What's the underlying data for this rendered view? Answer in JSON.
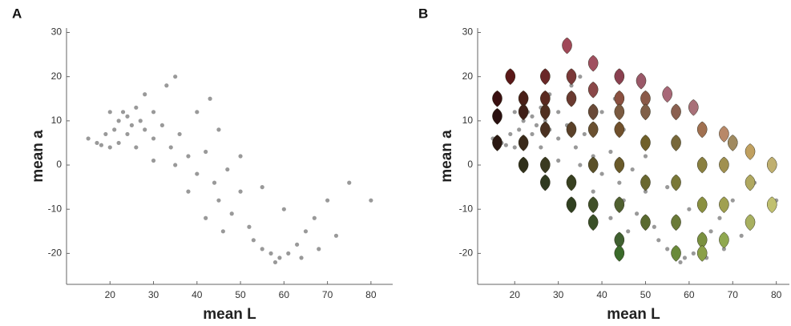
{
  "chart_data": [
    {
      "type": "scatter",
      "panel": "A",
      "xlabel": "mean L",
      "ylabel": "mean a",
      "xlim": [
        10,
        85
      ],
      "ylim": [
        -27,
        31
      ],
      "xticks": [
        20,
        30,
        40,
        50,
        60,
        70,
        80
      ],
      "yticks": [
        -20,
        -10,
        0,
        10,
        20,
        30
      ],
      "color": "#000000",
      "x": [
        15,
        17,
        18,
        20,
        19,
        21,
        22,
        23,
        24,
        25,
        26,
        27,
        28,
        24,
        22,
        30,
        32,
        30,
        34,
        36,
        38,
        35,
        40,
        42,
        44,
        45,
        47,
        48,
        50,
        52,
        53,
        55,
        57,
        59,
        61,
        63,
        65,
        67,
        60,
        55,
        50,
        45,
        40,
        33,
        28,
        70,
        75,
        72,
        58,
        64,
        38,
        42,
        30,
        26,
        46,
        80,
        35,
        43,
        20,
        68
      ],
      "y": [
        6,
        5,
        4.5,
        4,
        7,
        8,
        10,
        12,
        11,
        9,
        13,
        10,
        8,
        7,
        5,
        12,
        9,
        6,
        4,
        7,
        2,
        0,
        -2,
        3,
        -4,
        -8,
        -1,
        -11,
        -6,
        -14,
        -17,
        -19,
        -20,
        -21,
        -20,
        -18,
        -15,
        -12,
        -10,
        -5,
        2,
        8,
        12,
        18,
        16,
        -8,
        -4,
        -16,
        -22,
        -21,
        -6,
        -12,
        1,
        4,
        -15,
        -8,
        20,
        15,
        12,
        -19
      ]
    },
    {
      "type": "leafmap",
      "panel": "B",
      "xlabel": "mean L",
      "ylabel": "mean a",
      "xlim": [
        11.5,
        83
      ],
      "ylim": [
        -27,
        31
      ],
      "xticks": [
        20,
        30,
        40,
        50,
        60,
        70,
        80
      ],
      "yticks": [
        -20,
        -10,
        0,
        10,
        20,
        30
      ],
      "color": "#000000",
      "x": [
        15,
        17,
        18,
        20,
        19,
        21,
        22,
        23,
        24,
        25,
        26,
        27,
        28,
        24,
        22,
        30,
        32,
        30,
        34,
        36,
        38,
        35,
        40,
        42,
        44,
        45,
        47,
        48,
        50,
        52,
        53,
        55,
        57,
        59,
        61,
        63,
        65,
        67,
        60,
        55,
        50,
        45,
        40,
        33,
        28,
        70,
        75,
        72,
        58,
        64,
        38,
        42,
        30,
        26,
        46,
        80,
        35,
        43,
        20,
        68
      ],
      "y": [
        6,
        5,
        4.5,
        4,
        7,
        8,
        10,
        12,
        11,
        9,
        13,
        10,
        8,
        7,
        5,
        12,
        9,
        6,
        4,
        7,
        2,
        0,
        -2,
        3,
        -4,
        -8,
        -1,
        -11,
        -6,
        -14,
        -17,
        -19,
        -20,
        -21,
        -20,
        -18,
        -15,
        -12,
        -10,
        -5,
        2,
        8,
        12,
        18,
        16,
        -8,
        -4,
        -16,
        -22,
        -21,
        -6,
        -12,
        1,
        4,
        -15,
        -8,
        20,
        15,
        12,
        -19
      ],
      "leaves": {
        "x": [
          32,
          38,
          19,
          27,
          33,
          44,
          49,
          38,
          55,
          16,
          22,
          27,
          33,
          44,
          50,
          61,
          22,
          27,
          38,
          44,
          50,
          57,
          16,
          27,
          33,
          38,
          44,
          63,
          68,
          16,
          22,
          50,
          57,
          70,
          74,
          22,
          27,
          38,
          44,
          63,
          68,
          79,
          27,
          33,
          50,
          57,
          74,
          33,
          38,
          44,
          63,
          68,
          79,
          38,
          50,
          57,
          74,
          44,
          63,
          68,
          44,
          57,
          63
        ],
        "y": [
          27,
          23,
          20,
          20,
          20,
          20,
          19,
          17,
          16,
          15,
          15,
          15,
          15,
          15,
          15,
          13,
          12,
          12,
          12,
          12,
          12,
          12,
          11,
          8,
          8,
          8,
          8,
          8,
          7,
          5,
          5,
          5,
          5,
          5,
          3,
          0,
          0,
          0,
          0,
          0,
          0,
          0,
          -4,
          -4,
          -4,
          -4,
          -4,
          -9,
          -9,
          -9,
          -9,
          -9,
          -9,
          -13,
          -13,
          -13,
          -13,
          -17,
          -17,
          -17,
          -20,
          -20,
          -20
        ],
        "colors": [
          "#a04858",
          "#a05060",
          "#5a1818",
          "#6a2828",
          "#7a3838",
          "#8a4050",
          "#9a5868",
          "#8a4848",
          "#a86878",
          "#3a1010",
          "#4a2018",
          "#5a2a20",
          "#6a3a30",
          "#8a5040",
          "#8a5a48",
          "#a87078",
          "#402018",
          "#503020",
          "#6a4a38",
          "#7a5a40",
          "#806048",
          "#8a6050",
          "#2a1010",
          "#4a3020",
          "#5a4028",
          "#6a5030",
          "#70502c",
          "#a07050",
          "#b88868",
          "#2a1812",
          "#3a2a1a",
          "#70602a",
          "#78683a",
          "#a08a60",
          "#c0a060",
          "#30301a",
          "#3a3a20",
          "#5a5028",
          "#6a5a2a",
          "#8a8040",
          "#a09050",
          "#c0b070",
          "#303a20",
          "#384020",
          "#6a6830",
          "#7a7838",
          "#b0a860",
          "#304020",
          "#405028",
          "#506030",
          "#8a9040",
          "#a0a050",
          "#c0c070",
          "#3a5028",
          "#5a6a30",
          "#6a7a38",
          "#a8b060",
          "#406030",
          "#7a9040",
          "#90a850",
          "#3a6a2a",
          "#6a8a3a",
          "#8aa048"
        ]
      }
    }
  ]
}
